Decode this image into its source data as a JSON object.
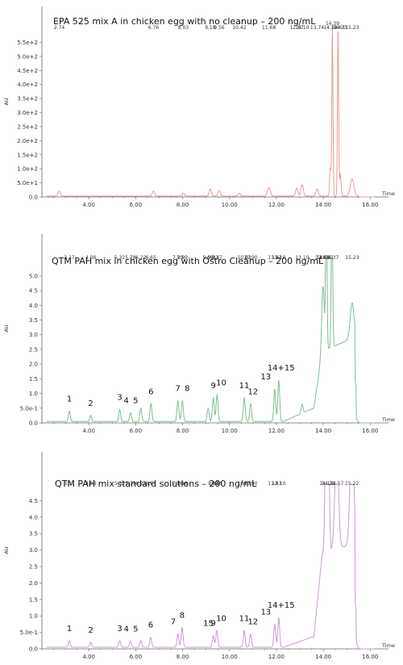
{
  "chart_data": [
    {
      "type": "line",
      "title": "EPA 525 mix A in chicken egg with no cleanup – 200 ng/mL",
      "ylabel": "AU",
      "xlabel": "Time",
      "color": "#e89a9a",
      "xlim": [
        2.0,
        16.3
      ],
      "ylim": [
        0,
        600
      ],
      "x_ticks": [
        "4.00",
        "6.00",
        "8.00",
        "10.00",
        "12.00",
        "14.00",
        "16.00"
      ],
      "y_ticks": [
        "0.0",
        "5.0e+1",
        "1.0e+2",
        "1.5e+2",
        "2.0e+2",
        "2.5e+2",
        "3.0e+2",
        "3.5e+2",
        "4.0e+2",
        "4.5e+2",
        "5.0e+2",
        "5.5e+2"
      ],
      "baseline": 3,
      "peaks": [
        {
          "rt": 2.74,
          "h": 18,
          "w": 0.05,
          "label": "2.74"
        },
        {
          "rt": 6.76,
          "h": 18,
          "w": 0.05,
          "label": "6.76"
        },
        {
          "rt": 8.03,
          "h": 10,
          "w": 0.05,
          "label": "8.03"
        },
        {
          "rt": 9.18,
          "h": 25,
          "w": 0.05,
          "label": "9.18"
        },
        {
          "rt": 9.56,
          "h": 20,
          "w": 0.05,
          "label": "9.56"
        },
        {
          "rt": 10.42,
          "h": 10,
          "w": 0.05,
          "label": "10.42"
        },
        {
          "rt": 11.68,
          "h": 30,
          "w": 0.06,
          "label": "11.68"
        },
        {
          "rt": 12.87,
          "h": 28,
          "w": 0.05,
          "label": "12.87"
        },
        {
          "rt": 13.1,
          "h": 40,
          "w": 0.05,
          "label": "13.10"
        },
        {
          "rt": 13.74,
          "h": 25,
          "w": 0.05,
          "label": "13.74"
        },
        {
          "rt": 14.3,
          "h": 100,
          "w": 0.03,
          "label": "14.30"
        },
        {
          "rt": 14.39,
          "h": 600,
          "w": 0.025,
          "label": "14.39"
        },
        {
          "rt": 14.63,
          "h": 585,
          "w": 0.025,
          "label": "14.63"
        },
        {
          "rt": 14.73,
          "h": 80,
          "w": 0.03,
          "label": "14.73"
        },
        {
          "rt": 15.23,
          "h": 60,
          "w": 0.08,
          "label": "15.23"
        }
      ],
      "numbers": []
    },
    {
      "type": "line",
      "title": "QTM PAH mix in chicken egg with Ostro Cleanup – 200 ng/mL",
      "ylabel": "AU",
      "xlabel": "Time",
      "color": "#7fbf8f",
      "xlim": [
        2.0,
        16.3
      ],
      "ylim": [
        0,
        5.6
      ],
      "x_ticks": [
        "4.00",
        "6.00",
        "8.00",
        "10.00",
        "12.00",
        "14.00",
        "16.00"
      ],
      "y_ticks": [
        "0.0",
        "5.0e-1",
        "1.0",
        "1.5",
        "2.0",
        "2.5",
        "3.0",
        "3.5",
        "4.0",
        "4.5",
        "5.0"
      ],
      "baseline": 0.05,
      "peaks": [
        {
          "rt": 3.17,
          "h": 0.35,
          "w": 0.04,
          "label": "3.17"
        },
        {
          "rt": 4.08,
          "h": 0.2,
          "w": 0.04,
          "label": "4.08"
        },
        {
          "rt": 5.32,
          "h": 0.4,
          "w": 0.04,
          "label": "5.32"
        },
        {
          "rt": 5.78,
          "h": 0.3,
          "w": 0.04,
          "label": "5.78"
        },
        {
          "rt": 6.22,
          "h": 0.45,
          "w": 0.04,
          "label": "6.22"
        },
        {
          "rt": 6.65,
          "h": 0.6,
          "w": 0.04,
          "label": "6.65"
        },
        {
          "rt": 7.8,
          "h": 0.7,
          "w": 0.04,
          "label": "7.80"
        },
        {
          "rt": 7.99,
          "h": 0.7,
          "w": 0.04,
          "label": "7.99"
        },
        {
          "rt": 9.09,
          "h": 0.45,
          "w": 0.04,
          "label": "9.09"
        },
        {
          "rt": 9.31,
          "h": 0.8,
          "w": 0.04,
          "label": "9.31"
        },
        {
          "rt": 9.47,
          "h": 0.9,
          "w": 0.04,
          "label": "9.47"
        },
        {
          "rt": 10.63,
          "h": 0.8,
          "w": 0.04,
          "label": "10.63"
        },
        {
          "rt": 10.9,
          "h": 0.6,
          "w": 0.04,
          "label": "10.90"
        },
        {
          "rt": 11.93,
          "h": 1.1,
          "w": 0.04,
          "label": "11.93"
        },
        {
          "rt": 12.1,
          "h": 1.4,
          "w": 0.04,
          "label": "12.10"
        },
        {
          "rt": 13.1,
          "h": 0.3,
          "w": 0.04,
          "label": "13.10"
        },
        {
          "rt": 13.95,
          "h": 0.6,
          "w": 0.05,
          "label": "13.95"
        },
        {
          "rt": 14.0,
          "h": 1.8,
          "w": 0.05,
          "label": "14.00"
        },
        {
          "rt": 14.13,
          "h": 5.2,
          "w": 0.03,
          "label": "14.13"
        },
        {
          "rt": 14.37,
          "h": 5.3,
          "w": 0.03,
          "label": "14.37"
        },
        {
          "rt": 15.23,
          "h": 1.2,
          "w": 0.08,
          "label": "15.23"
        }
      ],
      "numbers": [
        {
          "text": "1",
          "rt": 3.17
        },
        {
          "text": "2",
          "rt": 4.08
        },
        {
          "text": "3",
          "rt": 5.32
        },
        {
          "text": "4",
          "rt": 5.6
        },
        {
          "text": "5",
          "rt": 6.0
        },
        {
          "text": "6",
          "rt": 6.65
        },
        {
          "text": "7",
          "rt": 7.8
        },
        {
          "text": "8",
          "rt": 8.2
        },
        {
          "text": "9",
          "rt": 9.31
        },
        {
          "text": "10",
          "rt": 9.65
        },
        {
          "text": "11",
          "rt": 10.63
        },
        {
          "text": "12",
          "rt": 11.0
        },
        {
          "text": "13",
          "rt": 11.55
        },
        {
          "text": "14+15",
          "rt": 12.2
        }
      ]
    },
    {
      "type": "line",
      "title": "QTM PAH mix standard solutions – 200 ng/mL",
      "ylabel": "AU",
      "xlabel": "Time",
      "color": "#c99bcf",
      "xlim": [
        2.0,
        16.3
      ],
      "ylim": [
        0,
        5.0
      ],
      "x_ticks": [
        "4.00",
        "6.00",
        "8.00",
        "10.00",
        "12.00",
        "14.00",
        "16.00"
      ],
      "y_ticks": [
        "0.0",
        "5.0e-1",
        "1.0",
        "1.5",
        "2.0",
        "2.5",
        "3.0",
        "3.5",
        "4.0",
        "4.5"
      ],
      "baseline": 0.05,
      "peaks": [
        {
          "rt": 3.17,
          "h": 0.2,
          "w": 0.04,
          "label": "3.17"
        },
        {
          "rt": 4.08,
          "h": 0.15,
          "w": 0.04,
          "label": "4.08"
        },
        {
          "rt": 5.32,
          "h": 0.2,
          "w": 0.04,
          "label": "5.32"
        },
        {
          "rt": 5.78,
          "h": 0.18,
          "w": 0.04,
          "label": "5.78"
        },
        {
          "rt": 6.22,
          "h": 0.2,
          "w": 0.04,
          "label": "6.22"
        },
        {
          "rt": 6.64,
          "h": 0.3,
          "w": 0.04,
          "label": "6.64"
        },
        {
          "rt": 7.8,
          "h": 0.4,
          "w": 0.04,
          "label": "7.80"
        },
        {
          "rt": 7.98,
          "h": 0.6,
          "w": 0.04,
          "label": "7.98"
        },
        {
          "rt": 9.31,
          "h": 0.35,
          "w": 0.04,
          "label": "9.31"
        },
        {
          "rt": 9.46,
          "h": 0.5,
          "w": 0.04,
          "label": "9.46"
        },
        {
          "rt": 10.63,
          "h": 0.5,
          "w": 0.04,
          "label": "10.63"
        },
        {
          "rt": 10.9,
          "h": 0.4,
          "w": 0.04,
          "label": "10.90"
        },
        {
          "rt": 11.93,
          "h": 0.7,
          "w": 0.04,
          "label": "11.93"
        },
        {
          "rt": 12.1,
          "h": 0.9,
          "w": 0.04,
          "label": "12.10"
        },
        {
          "rt": 14.13,
          "h": 4.8,
          "w": 0.05,
          "label": "14.13"
        },
        {
          "rt": 14.22,
          "h": 3.8,
          "w": 0.04,
          "label": "14.22"
        },
        {
          "rt": 14.57,
          "h": 3.0,
          "w": 0.08,
          "label": "14.57"
        },
        {
          "rt": 15.22,
          "h": 3.4,
          "w": 0.08,
          "label": "15.22"
        }
      ],
      "numbers": [
        {
          "text": "1",
          "rt": 3.17
        },
        {
          "text": "2",
          "rt": 4.08
        },
        {
          "text": "3",
          "rt": 5.32
        },
        {
          "text": "4",
          "rt": 5.6
        },
        {
          "text": "5",
          "rt": 6.0
        },
        {
          "text": "6",
          "rt": 6.64
        },
        {
          "text": "7",
          "rt": 7.6
        },
        {
          "text": "8",
          "rt": 7.98
        },
        {
          "text": "15",
          "rt": 9.1
        },
        {
          "text": "9",
          "rt": 9.31
        },
        {
          "text": "10",
          "rt": 9.65
        },
        {
          "text": "11",
          "rt": 10.63
        },
        {
          "text": "12",
          "rt": 11.0
        },
        {
          "text": "13",
          "rt": 11.55
        },
        {
          "text": "14+15",
          "rt": 12.2
        }
      ]
    }
  ]
}
